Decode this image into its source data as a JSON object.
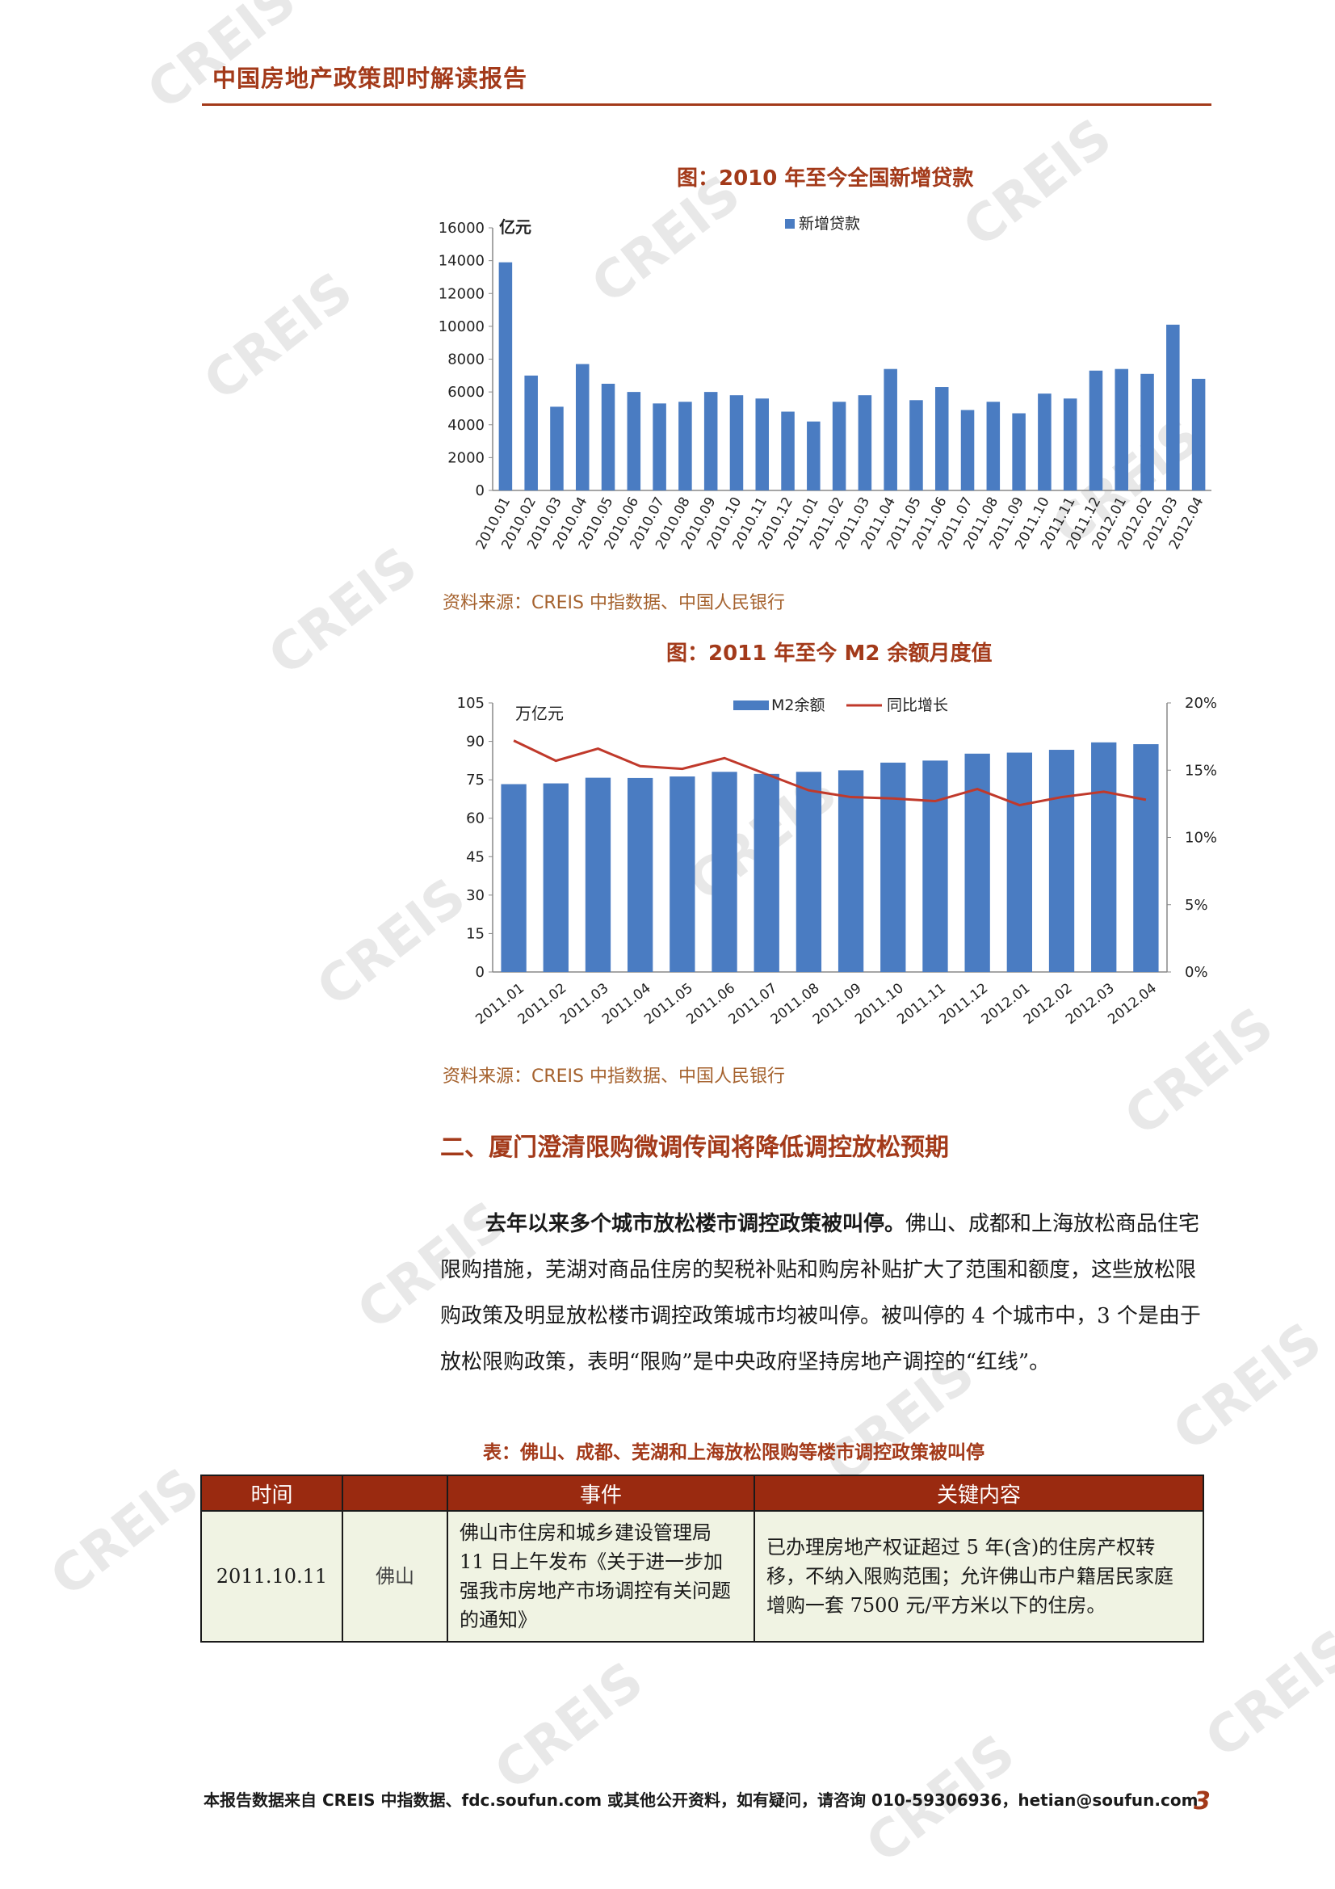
{
  "header": {
    "title": "中国房地产政策即时解读报告"
  },
  "watermark": {
    "text": "CREIS"
  },
  "figure1": {
    "title": "图：2010 年至今全国新增贷款",
    "source": "资料来源：CREIS 中指数据、中国人民银行"
  },
  "figure2": {
    "title": "图：2011 年至今 M2 余额月度值",
    "source": "资料来源：CREIS 中指数据、中国人民银行"
  },
  "chart_data": [
    {
      "type": "bar",
      "ylabel": "亿元",
      "ylim": [
        0,
        16000
      ],
      "yticks": [
        "0",
        "2000",
        "4000",
        "6000",
        "8000",
        "10000",
        "12000",
        "14000",
        "16000"
      ],
      "legend": "top-right",
      "categories": [
        "2010.01",
        "2010.02",
        "2010.03",
        "2010.04",
        "2010.05",
        "2010.06",
        "2010.07",
        "2010.08",
        "2010.09",
        "2010.10",
        "2010.11",
        "2010.12",
        "2011.01",
        "2011.02",
        "2011.03",
        "2011.04",
        "2011.05",
        "2011.06",
        "2011.07",
        "2011.08",
        "2011.09",
        "2011.10",
        "2011.11",
        "2011.12",
        "2012.01",
        "2012.02",
        "2012.03",
        "2012.04"
      ],
      "series": [
        {
          "name": "新增贷款",
          "color": "#4a7cc2",
          "values": [
            13900,
            7000,
            5100,
            7700,
            6500,
            6000,
            5300,
            5400,
            6000,
            5800,
            5600,
            4800,
            4200,
            5400,
            5800,
            7400,
            5500,
            6300,
            4900,
            5400,
            4700,
            5900,
            5600,
            7300,
            7400,
            7100,
            10100,
            6800
          ]
        }
      ]
    },
    {
      "type": "bar",
      "ylabel": "万亿元",
      "ylim": [
        0,
        105
      ],
      "yticks": [
        "0",
        "15",
        "30",
        "45",
        "60",
        "75",
        "90",
        "105"
      ],
      "y2lim": [
        0,
        20
      ],
      "y2ticks": [
        "0%",
        "5%",
        "10%",
        "15%",
        "20%"
      ],
      "legend": "top",
      "categories": [
        "2011.01",
        "2011.02",
        "2011.03",
        "2011.04",
        "2011.05",
        "2011.06",
        "2011.07",
        "2011.08",
        "2011.09",
        "2011.10",
        "2011.11",
        "2011.12",
        "2012.01",
        "2012.02",
        "2012.03",
        "2012.04"
      ],
      "series": [
        {
          "name": "M2余额",
          "type": "bar",
          "color": "#4a7cc2",
          "values": [
            73.3,
            73.6,
            75.8,
            75.7,
            76.3,
            78.1,
            77.3,
            78.1,
            78.7,
            81.7,
            82.5,
            85.2,
            85.6,
            86.7,
            89.6,
            88.9
          ]
        },
        {
          "name": "同比增长",
          "type": "line",
          "axis": "right",
          "color": "#c0392b",
          "values": [
            17.2,
            15.7,
            16.6,
            15.3,
            15.1,
            15.9,
            14.7,
            13.5,
            13.0,
            12.9,
            12.7,
            13.6,
            12.4,
            13.0,
            13.4,
            12.8
          ]
        }
      ]
    }
  ],
  "section": {
    "heading": "二、厦门澄清限购微调传闻将降低调控放松预期"
  },
  "paragraph": {
    "lead": "去年以来多个城市放松楼市调控政策被叫停。",
    "rest": "佛山、成都和上海放松商品住宅限购措施，芜湖对商品住房的契税补贴和购房补贴扩大了范围和额度，这些放松限购政策及明显放松楼市调控政策城市均被叫停。被叫停的 4 个城市中，3 个是由于放松限购政策，表明“限购”是中央政府坚持房地产调控的“红线”。"
  },
  "table": {
    "title": "表：佛山、成都、芜湖和上海放松限购等楼市调控政策被叫停",
    "headers": {
      "time": "时间",
      "event": "事件",
      "content": "关键内容"
    },
    "rows": [
      {
        "time": "2011.10.11",
        "city": "佛山",
        "event": "佛山市住房和城乡建设管理局 11 日上午发布《关于进一步加强我市房地产市场调控有关问题的通知》",
        "content": "已办理房地产权证超过 5 年(含)的住房产权转移，不纳入限购范围；允许佛山市户籍居民家庭增购一套 7500 元/平方米以下的住房。"
      }
    ]
  },
  "footer": {
    "text": "本报告数据来自 CREIS 中指数据、fdc.soufun.com 或其他公开资料，如有疑问，请咨询 010-59306936，hetian@soufun.com",
    "page": "3"
  }
}
